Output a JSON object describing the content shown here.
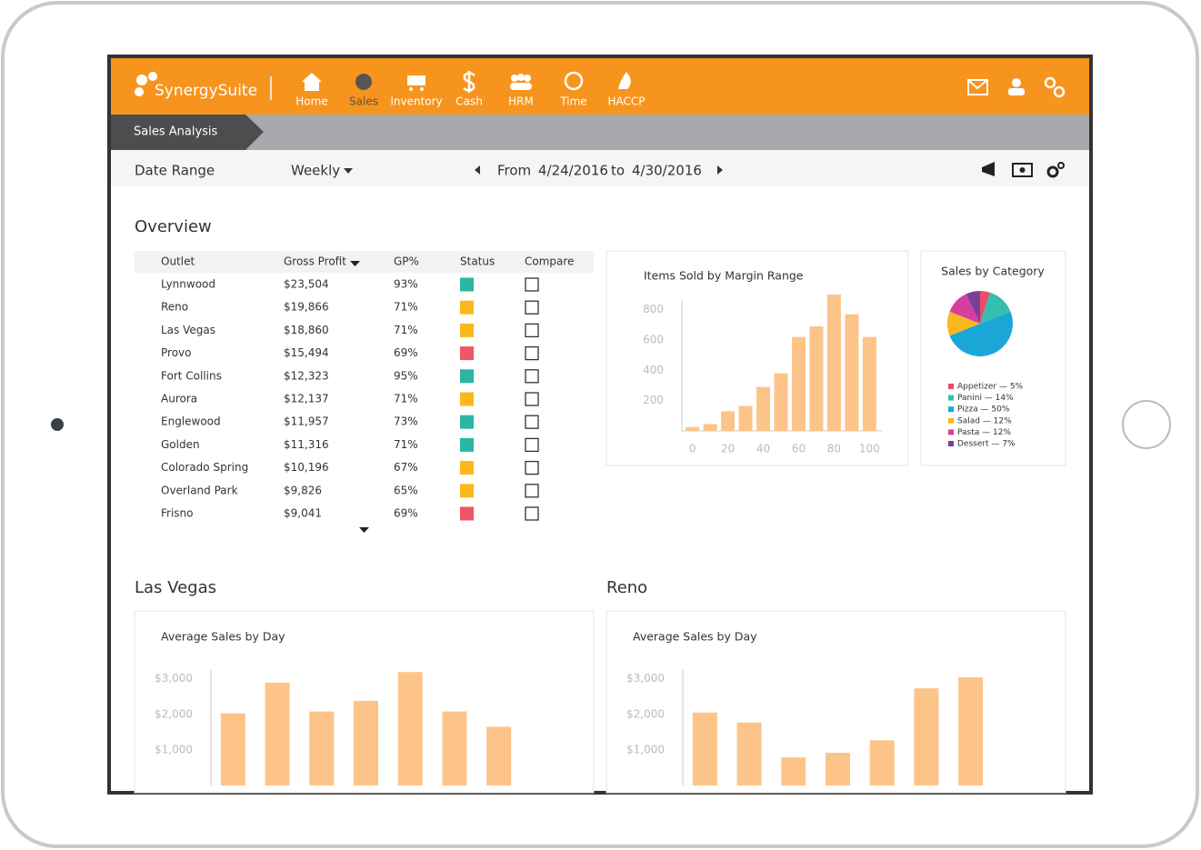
{
  "nav": {
    "brand": "SynergySuite",
    "items": [
      "Home",
      "Sales",
      "Inventory",
      "Cash",
      "HRM",
      "Time",
      "HACCP"
    ]
  },
  "breadcrumb": "Sales Analysis",
  "toolbar": {
    "label": "Date Range",
    "period": "Weekly",
    "from": "From",
    "start": "4/24/2016",
    "to": "to",
    "end": "4/30/2016"
  },
  "overview": {
    "title": "Overview",
    "table": {
      "columns": [
        "Outlet",
        "Gross Profit",
        "GP%",
        "Status",
        "Compare"
      ],
      "rows": [
        [
          "Lynnwood",
          "$23,504",
          "93%"
        ],
        [
          "Reno",
          "$19,866",
          "71%"
        ],
        [
          "Las Vegas",
          "$18,860",
          "71%"
        ],
        [
          "Provo",
          "$15,494",
          "69%"
        ],
        [
          "Fort Collins",
          "$12,323",
          "95%"
        ],
        [
          "Aurora",
          "$12,137",
          "71%"
        ],
        [
          "Englewood",
          "$11,957",
          "73%"
        ],
        [
          "Golden",
          "$11,316",
          "71%"
        ],
        [
          "Colorado Spring",
          "$10,196",
          "67%"
        ],
        [
          "Overland Park",
          "$9,826",
          "65%"
        ],
        [
          "Frisno",
          "$9,041",
          "69%"
        ]
      ],
      "status_colors": [
        "#2bb5a3",
        "#fbb81c",
        "#fbb81c",
        "#ef5468",
        "#2bb5a3",
        "#fbb81c",
        "#2bb5a3",
        "#2bb5a3",
        "#fbb81c",
        "#fbb81c",
        "#ef5468"
      ]
    }
  },
  "chart_data": [
    {
      "type": "bar",
      "title": "Items Sold by Margin Range",
      "x": [
        0,
        10,
        20,
        30,
        40,
        50,
        60,
        70,
        80,
        90,
        100
      ],
      "values": [
        25,
        45,
        130,
        165,
        290,
        380,
        620,
        690,
        900,
        770,
        620
      ],
      "color": "#fdc48a",
      "xlim": [
        -6,
        107
      ],
      "xticks": [
        0,
        20,
        40,
        60,
        80,
        100
      ],
      "ylim": [
        0,
        900
      ],
      "yticks": [
        200,
        400,
        600,
        800
      ]
    },
    {
      "type": "pie",
      "title": "Sales by Category",
      "values": [
        5,
        14,
        50,
        12,
        12,
        7
      ],
      "value_labels": [
        "Appetizer — 5%",
        "Panini — 14%",
        "Pizza — 50%",
        "Salad — 12%",
        "Pasta — 12%",
        "Dessert — 7%"
      ],
      "colors": [
        "#e84f6a",
        "#35bfae",
        "#1aa7d8",
        "#fbb81c",
        "#d63f9e",
        "#7b3f99"
      ]
    },
    {
      "type": "bar",
      "heading": "Las Vegas",
      "title": "Average Sales by Day",
      "values": [
        2030,
        2890,
        2080,
        2380,
        3190,
        2080,
        1650
      ],
      "color": "#fdc48a",
      "ylim": [
        0,
        3400
      ],
      "yticks": [
        {
          "value": 1000,
          "label": "$1,000"
        },
        {
          "value": 2000,
          "label": "$2,000"
        },
        {
          "value": 3000,
          "label": "$3,000"
        }
      ]
    },
    {
      "type": "bar",
      "heading": "Reno",
      "title": "Average Sales by Day",
      "values": [
        2050,
        1770,
        790,
        920,
        1270,
        2730,
        3040
      ],
      "color": "#fdc48a",
      "ylim": [
        0,
        3400
      ],
      "yticks": [
        {
          "value": 1000,
          "label": "$1,000"
        },
        {
          "value": 2000,
          "label": "$2,000"
        },
        {
          "value": 3000,
          "label": "$3,000"
        }
      ]
    }
  ]
}
